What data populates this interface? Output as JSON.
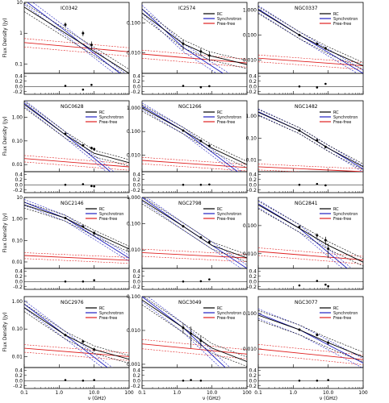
{
  "figure": {
    "y_axis_title": "Flux Density (Jy)",
    "x_axis_title": "ν (GHz)",
    "x_ticks": [
      "0.1",
      "1.0",
      "10.0",
      "100"
    ]
  },
  "legend": {
    "items": [
      {
        "label": "RC",
        "color": "#000000"
      },
      {
        "label": "Synchrotron",
        "color": "#2020c0"
      },
      {
        "label": "Free-free",
        "color": "#e02020"
      }
    ]
  },
  "chart_data": [
    {
      "type": "line",
      "name": "IC0342",
      "show_legend": false,
      "xscale": "log",
      "yscale": "log",
      "xlim": [
        0.1,
        100
      ],
      "ylim": [
        0.05,
        10
      ],
      "yticks": [
        0.1,
        1,
        10
      ],
      "ytick_labels": [
        "0.1",
        "1",
        "10"
      ],
      "rc": [
        [
          0.1,
          7
        ],
        [
          100,
          0.05
        ]
      ],
      "sync": [
        [
          0.1,
          12
        ],
        [
          1.5,
          1.2
        ],
        [
          20,
          0.12
        ],
        [
          100,
          0.03
        ]
      ],
      "ff": [
        [
          0.1,
          0.5
        ],
        [
          100,
          0.25
        ]
      ],
      "points": [
        [
          1.5,
          1.9,
          0.35
        ],
        [
          4.8,
          1.0,
          0.2
        ],
        [
          8.4,
          0.42,
          0.12
        ]
      ],
      "resid_ylim": [
        -0.3,
        0.5
      ],
      "resid_ticks": [
        -0.2,
        0.0,
        0.2,
        0.4
      ],
      "resid_tick_labels": [
        "-0.2",
        "0.0",
        "0.2",
        "0.4"
      ],
      "residuals": [
        [
          1.5,
          0.02
        ],
        [
          4.8,
          -0.12
        ],
        [
          8.4,
          0.06
        ]
      ]
    },
    {
      "type": "line",
      "name": "IC2574",
      "show_legend": true,
      "xscale": "log",
      "yscale": "log",
      "xlim": [
        0.1,
        100
      ],
      "ylim": [
        0.002,
        0.5
      ],
      "yticks": [
        0.01,
        0.1
      ],
      "ytick_labels": [
        "0.010",
        "0.100"
      ],
      "rc": [
        [
          0.1,
          0.22
        ],
        [
          1.5,
          0.02
        ],
        [
          8.4,
          0.008
        ],
        [
          100,
          0.004
        ]
      ],
      "sync": [
        [
          0.1,
          0.3
        ],
        [
          1.5,
          0.015
        ],
        [
          100,
          0.0006
        ]
      ],
      "ff": [
        [
          0.1,
          0.009
        ],
        [
          100,
          0.0045
        ]
      ],
      "points": [
        [
          1.5,
          0.02,
          0.008
        ],
        [
          4.8,
          0.011,
          0.003
        ],
        [
          8.4,
          0.008,
          0.003
        ]
      ],
      "resid_ylim": [
        -0.3,
        0.5
      ],
      "resid_ticks": [
        -0.2,
        0.0,
        0.2,
        0.4
      ],
      "resid_tick_labels": [
        "-0.2",
        "0.0",
        "0.2",
        "0.4"
      ],
      "residuals": [
        [
          1.5,
          0.02
        ],
        [
          4.8,
          -0.03
        ],
        [
          8.4,
          0.01
        ]
      ]
    },
    {
      "type": "line",
      "name": "NGC0337",
      "show_legend": true,
      "xscale": "log",
      "yscale": "log",
      "xlim": [
        0.1,
        100
      ],
      "ylim": [
        0.003,
        2
      ],
      "yticks": [
        0.01,
        0.1,
        1
      ],
      "ytick_labels": [
        "0.010",
        "0.100",
        "1.000"
      ],
      "rc": [
        [
          0.1,
          1.0
        ],
        [
          1.5,
          0.1
        ],
        [
          10,
          0.025
        ],
        [
          100,
          0.006
        ]
      ],
      "sync": [
        [
          0.1,
          1.1
        ],
        [
          1.5,
          0.1
        ],
        [
          100,
          0.003
        ]
      ],
      "ff": [
        [
          0.1,
          0.012
        ],
        [
          100,
          0.006
        ]
      ],
      "points": [
        [
          1.5,
          0.1,
          0.01
        ],
        [
          4.8,
          0.045,
          0.005
        ],
        [
          8.4,
          0.03,
          0.004
        ]
      ],
      "resid_ylim": [
        -0.3,
        0.5
      ],
      "resid_ticks": [
        -0.2,
        0.0,
        0.2,
        0.4
      ],
      "resid_tick_labels": [
        "-0.2",
        "0.0",
        "0.2",
        "0.4"
      ],
      "residuals": [
        [
          1.5,
          0.0
        ],
        [
          4.8,
          -0.04
        ],
        [
          8.4,
          0.1
        ]
      ]
    },
    {
      "type": "line",
      "name": "NGC0628",
      "show_legend": true,
      "xscale": "log",
      "yscale": "log",
      "xlim": [
        0.1,
        100
      ],
      "ylim": [
        0.005,
        5
      ],
      "yticks": [
        0.01,
        0.1,
        1
      ],
      "ytick_labels": [
        "0.01",
        "0.10",
        "1.00"
      ],
      "rc": [
        [
          0.1,
          3.5
        ],
        [
          1.5,
          0.18
        ],
        [
          10,
          0.03
        ],
        [
          100,
          0.012
        ]
      ],
      "sync": [
        [
          0.1,
          4
        ],
        [
          1.5,
          0.18
        ],
        [
          20,
          0.008
        ],
        [
          100,
          0.001
        ]
      ],
      "ff": [
        [
          0.1,
          0.018
        ],
        [
          100,
          0.008
        ]
      ],
      "points": [
        [
          1.5,
          0.2,
          0.02
        ],
        [
          4.8,
          0.065,
          0.008
        ],
        [
          8.4,
          0.05,
          0.007
        ],
        [
          10,
          0.045,
          0.007
        ]
      ],
      "resid_ylim": [
        -0.3,
        0.5
      ],
      "resid_ticks": [
        -0.2,
        0.0,
        0.2,
        0.4
      ],
      "resid_tick_labels": [
        "-0.2",
        "0.0",
        "0.2",
        "0.4"
      ],
      "residuals": [
        [
          1.5,
          0.0
        ],
        [
          4.8,
          0.02
        ],
        [
          8.4,
          -0.05
        ],
        [
          10,
          -0.06
        ]
      ]
    },
    {
      "type": "line",
      "name": "NGC1266",
      "show_legend": true,
      "xscale": "log",
      "yscale": "log",
      "xlim": [
        0.1,
        100
      ],
      "ylim": [
        0.002,
        2
      ],
      "yticks": [
        0.01,
        0.1,
        1
      ],
      "ytick_labels": [
        "0.010",
        "0.100",
        "1.000"
      ],
      "rc": [
        [
          0.1,
          1.0
        ],
        [
          1.5,
          0.11
        ],
        [
          10,
          0.02
        ],
        [
          100,
          0.004
        ]
      ],
      "sync": [
        [
          0.1,
          1.2
        ],
        [
          1.5,
          0.11
        ],
        [
          100,
          0.001
        ]
      ],
      "ff": [
        [
          0.1,
          0.006
        ],
        [
          100,
          0.003
        ]
      ],
      "points": [
        [
          1.5,
          0.11,
          0.01
        ],
        [
          4.8,
          0.04,
          0.005
        ],
        [
          8.4,
          0.025,
          0.004
        ]
      ],
      "resid_ylim": [
        -0.3,
        0.5
      ],
      "resid_ticks": [
        -0.2,
        0.0,
        0.2,
        0.4
      ],
      "resid_tick_labels": [
        "-0.2",
        "0.0",
        "0.2",
        "0.4"
      ],
      "residuals": [
        [
          1.5,
          0.0
        ],
        [
          4.8,
          0.0
        ],
        [
          8.4,
          0.01
        ]
      ]
    },
    {
      "type": "line",
      "name": "NGC1482",
      "show_legend": true,
      "xscale": "log",
      "yscale": "log",
      "xlim": [
        0.1,
        100
      ],
      "ylim": [
        0.003,
        5
      ],
      "yticks": [
        0.01,
        0.1,
        1
      ],
      "ytick_labels": [
        "0.01",
        "0.10",
        "1.00"
      ],
      "rc": [
        [
          0.1,
          1.5
        ],
        [
          1.5,
          0.22
        ],
        [
          10,
          0.035
        ],
        [
          100,
          0.005
        ]
      ],
      "sync": [
        [
          0.1,
          1.6
        ],
        [
          1.5,
          0.22
        ],
        [
          100,
          0.004
        ]
      ],
      "ff": [
        [
          0.1,
          0.005
        ],
        [
          100,
          0.003
        ]
      ],
      "points": [
        [
          1.5,
          0.22,
          0.02
        ],
        [
          4.8,
          0.08,
          0.008
        ],
        [
          8.4,
          0.04,
          0.005
        ]
      ],
      "resid_ylim": [
        -0.3,
        0.5
      ],
      "resid_ticks": [
        -0.2,
        0.0,
        0.2,
        0.4
      ],
      "resid_tick_labels": [
        "-0.2",
        "0.0",
        "0.2",
        "0.4"
      ],
      "residuals": [
        [
          1.5,
          0.0
        ],
        [
          4.8,
          0.03
        ],
        [
          8.4,
          -0.02
        ]
      ]
    },
    {
      "type": "line",
      "name": "NGC2146",
      "show_legend": true,
      "xscale": "log",
      "yscale": "log",
      "xlim": [
        0.1,
        100
      ],
      "ylim": [
        0.005,
        10
      ],
      "yticks": [
        0.01,
        0.1,
        1,
        10
      ],
      "ytick_labels": [
        "0.01",
        "0.10",
        "1.00",
        "10"
      ],
      "rc": [
        [
          0.1,
          4.5
        ],
        [
          1.5,
          1.1
        ],
        [
          10,
          0.22
        ],
        [
          100,
          0.04
        ]
      ],
      "sync": [
        [
          0.1,
          6
        ],
        [
          1.5,
          1.1
        ],
        [
          100,
          0.015
        ]
      ],
      "ff": [
        [
          0.1,
          0.02
        ],
        [
          100,
          0.012
        ]
      ],
      "points": [
        [
          1.5,
          1.1,
          0.12
        ],
        [
          4.8,
          0.45,
          0.05
        ],
        [
          10,
          0.22,
          0.06
        ]
      ],
      "resid_ylim": [
        -0.3,
        0.5
      ],
      "resid_ticks": [
        -0.2,
        0.0,
        0.2,
        0.4
      ],
      "resid_tick_labels": [
        "-0.2",
        "0.0",
        "0.2",
        "0.4"
      ],
      "residuals": [
        [
          1.5,
          0.0
        ],
        [
          4.8,
          0.0
        ],
        [
          10,
          0.05
        ]
      ]
    },
    {
      "type": "line",
      "name": "NGC2798",
      "show_legend": true,
      "xscale": "log",
      "yscale": "log",
      "xlim": [
        0.1,
        100
      ],
      "ylim": [
        0.002,
        1
      ],
      "yticks": [
        0.01,
        0.1,
        1
      ],
      "ytick_labels": [
        "0.010",
        "0.100",
        "1.000"
      ],
      "rc": [
        [
          0.1,
          0.8
        ],
        [
          1.5,
          0.08
        ],
        [
          10,
          0.015
        ],
        [
          100,
          0.005
        ]
      ],
      "sync": [
        [
          0.1,
          1.0
        ],
        [
          1.5,
          0.08
        ],
        [
          100,
          0.002
        ]
      ],
      "ff": [
        [
          0.1,
          0.008
        ],
        [
          100,
          0.005
        ]
      ],
      "points": [
        [
          1.5,
          0.08,
          0.008
        ],
        [
          4.8,
          0.03,
          0.003
        ],
        [
          8.4,
          0.02,
          0.003
        ]
      ],
      "resid_ylim": [
        -0.3,
        0.5
      ],
      "resid_ticks": [
        -0.2,
        0.0,
        0.2,
        0.4
      ],
      "resid_tick_labels": [
        "-0.2",
        "0.0",
        "0.2",
        "0.4"
      ],
      "residuals": [
        [
          1.5,
          0.0
        ],
        [
          4.8,
          0.01
        ],
        [
          8.4,
          0.08
        ]
      ]
    },
    {
      "type": "line",
      "name": "NGC2841",
      "show_legend": true,
      "xscale": "log",
      "yscale": "log",
      "xlim": [
        0.1,
        100
      ],
      "ylim": [
        0.003,
        1
      ],
      "yticks": [
        0.01,
        0.1
      ],
      "ytick_labels": [
        "0.010",
        "0.100"
      ],
      "rc": [
        [
          0.1,
          0.55
        ],
        [
          1.5,
          0.08
        ],
        [
          10,
          0.02
        ],
        [
          100,
          0.005
        ]
      ],
      "sync": [
        [
          0.1,
          0.6
        ],
        [
          1.5,
          0.08
        ],
        [
          100,
          0.001
        ]
      ],
      "ff": [
        [
          0.1,
          0.012
        ],
        [
          100,
          0.006
        ]
      ],
      "points": [
        [
          1.5,
          0.09,
          0.01
        ],
        [
          4.8,
          0.045,
          0.008
        ],
        [
          8.4,
          0.03,
          0.01
        ],
        [
          10,
          0.015,
          0.008
        ]
      ],
      "resid_ylim": [
        -0.3,
        0.5
      ],
      "resid_ticks": [
        -0.2,
        0.0,
        0.2,
        0.4
      ],
      "resid_tick_labels": [
        "-0.2",
        "0.0",
        "0.2",
        "0.4"
      ],
      "residuals": [
        [
          1.5,
          -0.15
        ],
        [
          4.8,
          0.02
        ],
        [
          8.4,
          -0.12
        ],
        [
          10,
          -0.18
        ]
      ]
    },
    {
      "type": "line",
      "name": "NGC2976",
      "show_legend": true,
      "xscale": "log",
      "yscale": "log",
      "xlim": [
        0.1,
        100
      ],
      "ylim": [
        0.004,
        1.5
      ],
      "yticks": [
        0.01,
        0.1,
        1
      ],
      "ytick_labels": [
        "0.01",
        "0.10",
        "1.00"
      ],
      "rc": [
        [
          0.1,
          0.6
        ],
        [
          1.5,
          0.06
        ],
        [
          10,
          0.018
        ],
        [
          100,
          0.008
        ]
      ],
      "sync": [
        [
          0.1,
          0.8
        ],
        [
          1.5,
          0.06
        ],
        [
          100,
          0.001
        ]
      ],
      "ff": [
        [
          0.1,
          0.02
        ],
        [
          100,
          0.01
        ]
      ],
      "points": [
        [
          1.5,
          0.06,
          0.006
        ],
        [
          4.8,
          0.035,
          0.004
        ],
        [
          10,
          0.018,
          0.003
        ]
      ],
      "resid_ylim": [
        -0.3,
        0.5
      ],
      "resid_ticks": [
        -0.2,
        0.0,
        0.2,
        0.4
      ],
      "resid_tick_labels": [
        "-0.2",
        "0.0",
        "0.2",
        "0.4"
      ],
      "residuals": [
        [
          1.5,
          0.02
        ],
        [
          4.8,
          0.0
        ],
        [
          10,
          0.02
        ]
      ]
    },
    {
      "type": "line",
      "name": "NGC3049",
      "show_legend": true,
      "xscale": "log",
      "yscale": "log",
      "xlim": [
        0.1,
        100
      ],
      "ylim": [
        0.0008,
        0.1
      ],
      "yticks": [
        0.001,
        0.01,
        0.1
      ],
      "ytick_labels": [
        "0.001",
        "0.010",
        "0.100"
      ],
      "rc": [
        [
          0.1,
          0.08
        ],
        [
          1.5,
          0.012
        ],
        [
          10,
          0.003
        ],
        [
          100,
          0.0012
        ]
      ],
      "sync": [
        [
          0.1,
          0.1
        ],
        [
          1.5,
          0.012
        ],
        [
          100,
          0.0002
        ]
      ],
      "ff": [
        [
          0.1,
          0.004
        ],
        [
          100,
          0.002
        ]
      ],
      "points": [
        [
          1.5,
          0.012,
          0.004
        ],
        [
          2.5,
          0.008,
          0.005
        ],
        [
          4.8,
          0.005,
          0.002
        ]
      ],
      "resid_ylim": [
        -0.3,
        0.5
      ],
      "resid_ticks": [
        -0.2,
        0.0,
        0.2,
        0.4
      ],
      "resid_tick_labels": [
        "-0.2",
        "0.0",
        "0.2",
        "0.4"
      ],
      "residuals": [
        [
          1.5,
          0.0
        ],
        [
          2.5,
          0.02
        ],
        [
          4.8,
          0.0
        ]
      ]
    },
    {
      "type": "line",
      "name": "NGC3077",
      "show_legend": true,
      "xscale": "log",
      "yscale": "log",
      "xlim": [
        0.1,
        100
      ],
      "ylim": [
        0.003,
        0.3
      ],
      "yticks": [
        0.01,
        0.1
      ],
      "ytick_labels": [
        "0.010",
        "0.100"
      ],
      "rc": [
        [
          0.1,
          0.09
        ],
        [
          1.5,
          0.035
        ],
        [
          10,
          0.015
        ],
        [
          100,
          0.006
        ]
      ],
      "sync": [
        [
          0.1,
          0.1
        ],
        [
          1.5,
          0.035
        ],
        [
          100,
          0.004
        ]
      ],
      "ff": [
        [
          0.1,
          0.01
        ],
        [
          100,
          0.005
        ]
      ],
      "points": [
        [
          1.5,
          0.035,
          0.003
        ],
        [
          4.8,
          0.025,
          0.002
        ],
        [
          10,
          0.015,
          0.002
        ]
      ],
      "resid_ylim": [
        -0.3,
        0.5
      ],
      "resid_ticks": [
        -0.2,
        0.0,
        0.2,
        0.4
      ],
      "resid_tick_labels": [
        "-0.2",
        "0.0",
        "0.2",
        "0.4"
      ],
      "residuals": [
        [
          1.5,
          0.0
        ],
        [
          4.8,
          0.0
        ],
        [
          10,
          0.02
        ]
      ]
    }
  ]
}
